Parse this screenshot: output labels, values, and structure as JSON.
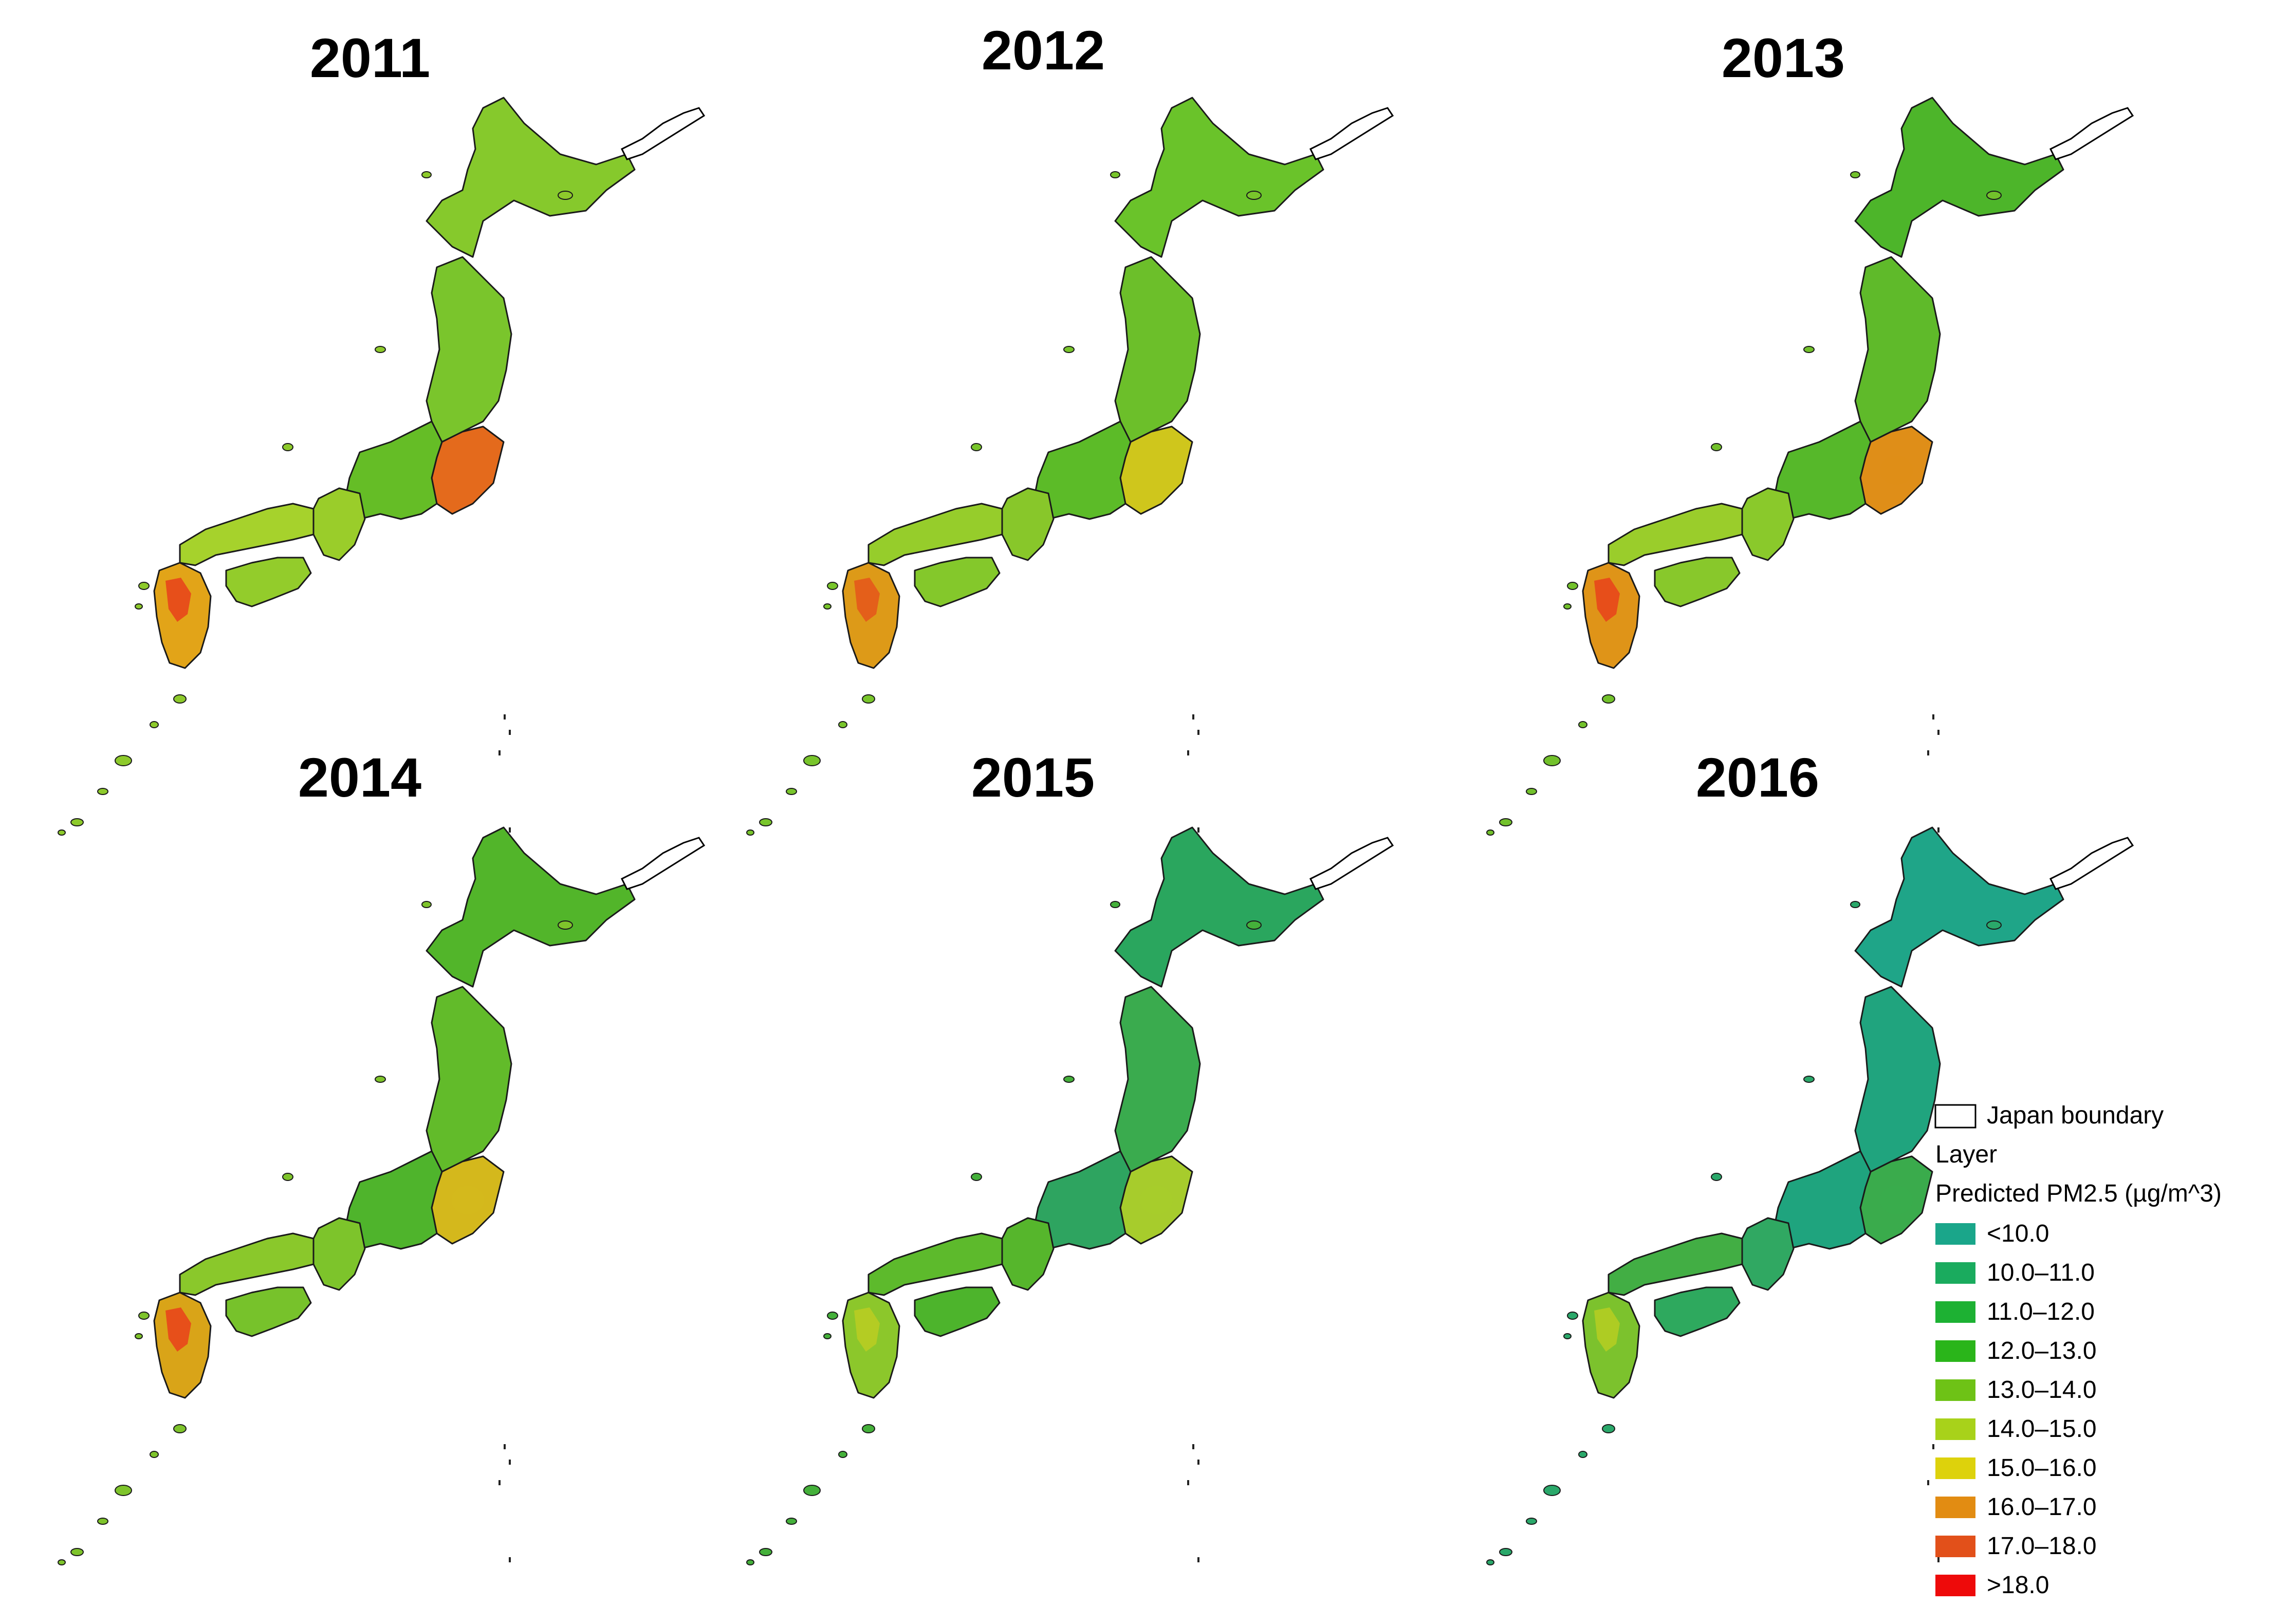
{
  "figure": {
    "panels": [
      {
        "year": "2011",
        "dominant": "13.0–14.0",
        "colors": {
          "hokkaido": "#86c92c",
          "tohoku": "#7ac52c",
          "kanto": "#e46a1c",
          "chubu": "#65bd26",
          "kinki": "#9acd2a",
          "chugoku": "#a6d22c",
          "shikoku": "#93cc2b",
          "kyushu": "#e2a418",
          "hotspot": "#e8461b",
          "islands": "#8dca2b"
        }
      },
      {
        "year": "2012",
        "dominant": "12.0–13.0",
        "colors": {
          "hokkaido": "#6ac32a",
          "tohoku": "#6cbf2a",
          "kanto": "#cfc61c",
          "chubu": "#5cbb28",
          "kinki": "#88c72a",
          "chugoku": "#96cd2b",
          "shikoku": "#84c82b",
          "kyushu": "#dd9a18",
          "hotspot": "#e4591b",
          "islands": "#78c52b"
        }
      },
      {
        "year": "2013",
        "dominant": "12.0–13.0",
        "colors": {
          "hokkaido": "#4db52a",
          "tohoku": "#5fba2a",
          "kanto": "#df8e18",
          "chubu": "#56b82a",
          "kinki": "#8ac92b",
          "chugoku": "#9acd2b",
          "shikoku": "#88c82b",
          "kyushu": "#df9418",
          "hotspot": "#e8461b",
          "islands": "#72c12b"
        }
      },
      {
        "year": "2014",
        "dominant": "12.0–13.0",
        "colors": {
          "hokkaido": "#52b52a",
          "tohoku": "#62bb2a",
          "kanto": "#d4b81c",
          "chubu": "#4fb42c",
          "kinki": "#7dc42b",
          "chugoku": "#8ac82b",
          "shikoku": "#77c22b",
          "kyushu": "#d9a418",
          "hotspot": "#e8461b",
          "islands": "#7ec42b"
        }
      },
      {
        "year": "2015",
        "dominant": "10.0–11.0",
        "colors": {
          "hokkaido": "#2aa65e",
          "tohoku": "#3aab4e",
          "kanto": "#a7cc2c",
          "chubu": "#2ea460",
          "kinki": "#56b62c",
          "chugoku": "#5dba2c",
          "shikoku": "#4db42c",
          "kyushu": "#8cc72b",
          "hotspot": "#b8cc22",
          "islands": "#44b03a"
        }
      },
      {
        "year": "2016",
        "dominant": "<10.0",
        "colors": {
          "hokkaido": "#1fa588",
          "tohoku": "#20a47e",
          "kanto": "#3aab4c",
          "chubu": "#1fa47e",
          "kinki": "#30a862",
          "chugoku": "#42ae44",
          "shikoku": "#2ea95e",
          "kyushu": "#7cc22d",
          "hotspot": "#b4cd22",
          "islands": "#2aa86a"
        }
      }
    ],
    "legend": {
      "boundary_label": "Japan boundary",
      "layer_label": "Layer",
      "variable_label": "Predicted PM2.5 (µg/m^3)",
      "classes": [
        {
          "label": "<10.0",
          "color": "#1aa68a"
        },
        {
          "label": "10.0–11.0",
          "color": "#1aab5e"
        },
        {
          "label": "11.0–12.0",
          "color": "#1db133"
        },
        {
          "label": "12.0–13.0",
          "color": "#2ab51a"
        },
        {
          "label": "13.0–14.0",
          "color": "#6ec216"
        },
        {
          "label": "14.0–15.0",
          "color": "#a8d21a"
        },
        {
          "label": "15.0–16.0",
          "color": "#ddd20c"
        },
        {
          "label": "16.0–17.0",
          "color": "#e28c12"
        },
        {
          "label": "17.0–18.0",
          "color": "#e2501a"
        },
        {
          "label": ">18.0",
          "color": "#ee0a0a"
        }
      ]
    }
  }
}
